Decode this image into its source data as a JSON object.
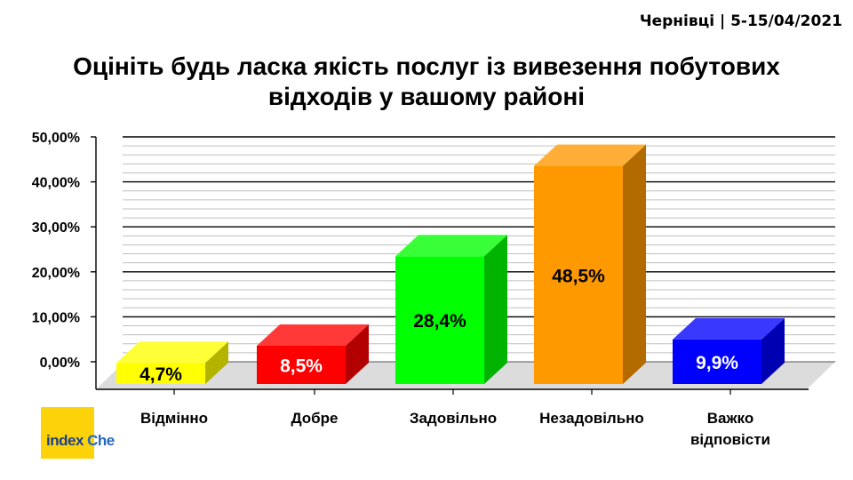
{
  "header": {
    "meta": "Чернівці | 5-15/04/2021"
  },
  "chart_data": {
    "type": "bar",
    "title": [
      "Оцініть будь ласка якість послуг із вивезення побутових",
      "відходів у вашому районі"
    ],
    "categories": [
      [
        "Відмінно"
      ],
      [
        "Добре"
      ],
      [
        "Задовільно"
      ],
      [
        "Незадовільно"
      ],
      [
        "Важко",
        "відповісти"
      ]
    ],
    "values": [
      4.7,
      8.5,
      28.4,
      48.5,
      9.9
    ],
    "data_labels": [
      "4,7%",
      "8,5%",
      "28,4%",
      "48,5%",
      "9,9%"
    ],
    "colors": [
      "#ffff00",
      "#ff0000",
      "#00ff00",
      "#ff9900",
      "#0000ff"
    ],
    "label_colors": [
      "#000000",
      "#ffffff",
      "#000000",
      "#000000",
      "#ffffff"
    ],
    "ytick_labels": [
      "0,00%",
      "10,00%",
      "20,00%",
      "30,00%",
      "40,00%",
      "50,00%"
    ],
    "yticks": [
      0,
      10,
      20,
      30,
      40,
      50
    ],
    "ylim": [
      0,
      50
    ],
    "grid": true,
    "bar_style": "3d"
  },
  "logo": {
    "part1": "index",
    "part2": "Che"
  }
}
